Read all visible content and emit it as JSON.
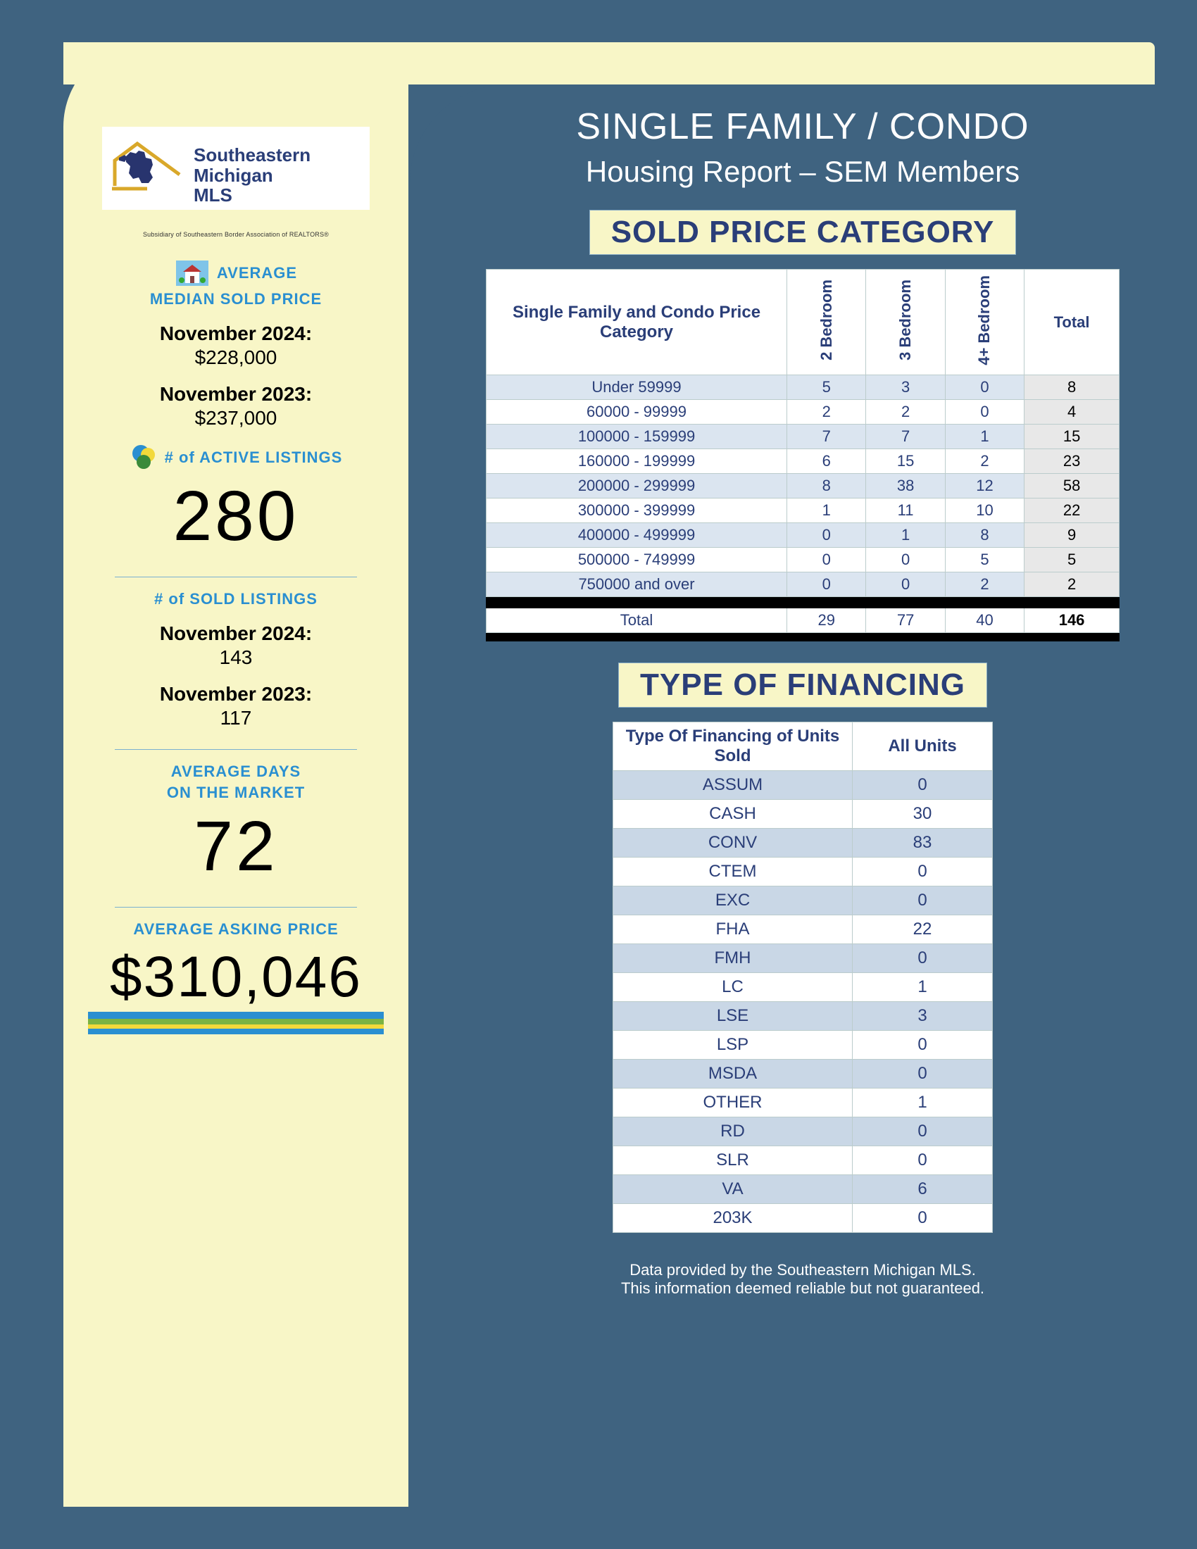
{
  "colors": {
    "page_bg": "#3f6380",
    "cream": "#f8f6c7",
    "accent_blue": "#2a8fd1",
    "navy_text": "#2a3e78",
    "table_odd": "#dbe5f0",
    "table_fin_odd": "#c9d7e6",
    "underline_blue": "#2a8fd1",
    "underline_green": "#7bb342",
    "underline_yellow": "#f2d93a"
  },
  "logo": {
    "line1": "Southeastern",
    "line2": "Michigan",
    "line3": "MLS",
    "subtext": "Subsidiary of Southeastern Border Association of REALTORS®"
  },
  "sidebar": {
    "avg_median_label1": "AVERAGE",
    "avg_median_label2": "MEDIAN SOLD PRICE",
    "p2024_label": "November 2024:",
    "p2024_val": "$228,000",
    "p2023_label": "November 2023:",
    "p2023_val": "$237,000",
    "active_listings_label": "# of ACTIVE LISTINGS",
    "active_listings_val": "280",
    "sold_listings_label": "# of SOLD LISTINGS",
    "sold_2024_label": "November 2024:",
    "sold_2024_val": "143",
    "sold_2023_label": "November 2023:",
    "sold_2023_val": "117",
    "avg_days_label1": "AVERAGE DAYS",
    "avg_days_label2": "ON THE MARKET",
    "avg_days_val": "72",
    "avg_asking_label": "AVERAGE ASKING PRICE",
    "avg_asking_val": "$310,046"
  },
  "main": {
    "title1": "SINGLE FAMILY / CONDO",
    "title2": "Housing Report – SEM Members",
    "band1": "SOLD PRICE CATEGORY",
    "band2": "TYPE OF FINANCING",
    "footer1": "Data provided by the Southeastern Michigan MLS.",
    "footer2": "This information deemed reliable but not guaranteed."
  },
  "price_table": {
    "title_header": "Single Family and Condo Price Category",
    "col_headers": [
      "2 Bedroom",
      "3 Bedroom",
      "4+ Bedroom",
      "Total"
    ],
    "rows": [
      {
        "cat": "Under 59999",
        "vals": [
          "5",
          "3",
          "0",
          "8"
        ]
      },
      {
        "cat": "60000 - 99999",
        "vals": [
          "2",
          "2",
          "0",
          "4"
        ]
      },
      {
        "cat": "100000 - 159999",
        "vals": [
          "7",
          "7",
          "1",
          "15"
        ]
      },
      {
        "cat": "160000 - 199999",
        "vals": [
          "6",
          "15",
          "2",
          "23"
        ]
      },
      {
        "cat": "200000 - 299999",
        "vals": [
          "8",
          "38",
          "12",
          "58"
        ]
      },
      {
        "cat": "300000 - 399999",
        "vals": [
          "1",
          "11",
          "10",
          "22"
        ]
      },
      {
        "cat": "400000 - 499999",
        "vals": [
          "0",
          "1",
          "8",
          "9"
        ]
      },
      {
        "cat": "500000 - 749999",
        "vals": [
          "0",
          "0",
          "5",
          "5"
        ]
      },
      {
        "cat": "750000  and over",
        "vals": [
          "0",
          "0",
          "2",
          "2"
        ]
      }
    ],
    "total_row": {
      "cat": "Total",
      "vals": [
        "29",
        "77",
        "40",
        "146"
      ]
    }
  },
  "fin_table": {
    "h1": "Type Of Financing of Units Sold",
    "h2": "All Units",
    "rows": [
      {
        "label": "ASSUM",
        "val": "0"
      },
      {
        "label": "CASH",
        "val": "30"
      },
      {
        "label": "CONV",
        "val": "83"
      },
      {
        "label": "CTEM",
        "val": "0"
      },
      {
        "label": "EXC",
        "val": "0"
      },
      {
        "label": "FHA",
        "val": "22"
      },
      {
        "label": "FMH",
        "val": "0"
      },
      {
        "label": "LC",
        "val": "1"
      },
      {
        "label": "LSE",
        "val": "3"
      },
      {
        "label": "LSP",
        "val": "0"
      },
      {
        "label": "MSDA",
        "val": "0"
      },
      {
        "label": "OTHER",
        "val": "1"
      },
      {
        "label": "RD",
        "val": "0"
      },
      {
        "label": "SLR",
        "val": "0"
      },
      {
        "label": "VA",
        "val": "6"
      },
      {
        "label": "203K",
        "val": "0"
      }
    ]
  }
}
